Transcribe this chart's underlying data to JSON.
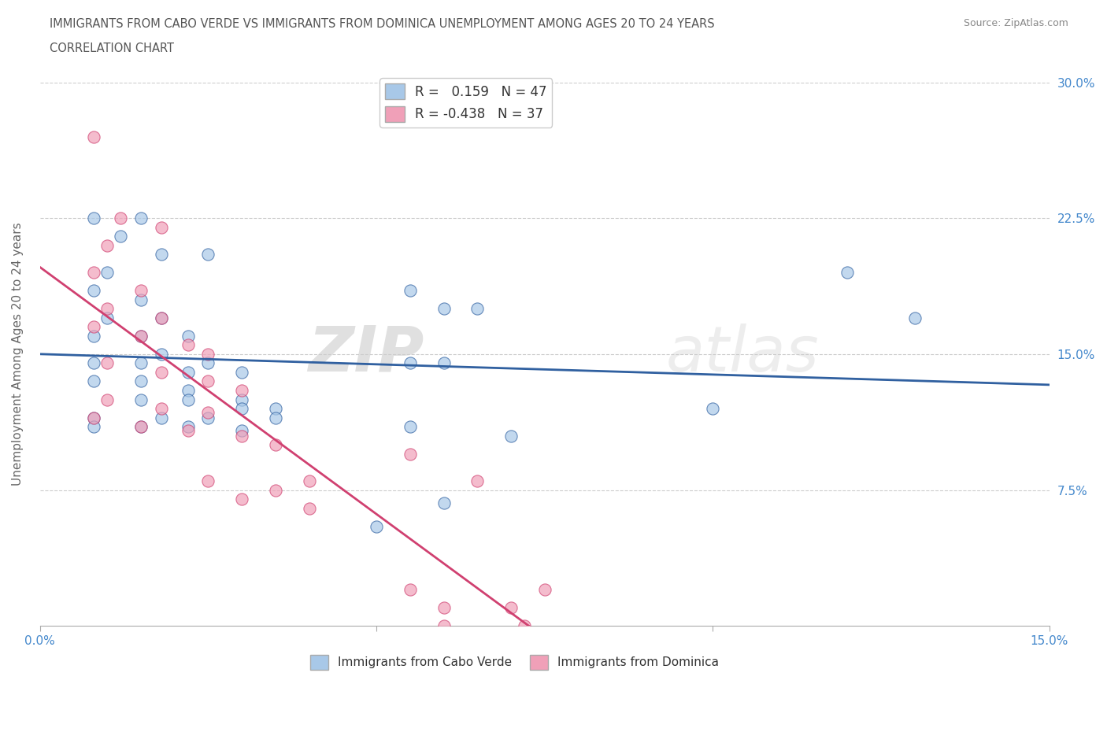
{
  "title_line1": "IMMIGRANTS FROM CABO VERDE VS IMMIGRANTS FROM DOMINICA UNEMPLOYMENT AMONG AGES 20 TO 24 YEARS",
  "title_line2": "CORRELATION CHART",
  "source_text": "Source: ZipAtlas.com",
  "ylabel": "Unemployment Among Ages 20 to 24 years",
  "xlim": [
    0.0,
    0.15
  ],
  "ylim": [
    0.0,
    0.3
  ],
  "ytick_labels_right": [
    "7.5%",
    "15.0%",
    "22.5%",
    "30.0%"
  ],
  "ytick_vals": [
    0.075,
    0.15,
    0.225,
    0.3
  ],
  "cabo_verde_color": "#A8C8E8",
  "dominica_color": "#F0A0B8",
  "cabo_verde_line_color": "#3060A0",
  "dominica_line_color": "#D04070",
  "cabo_verde_R": 0.159,
  "cabo_verde_N": 47,
  "dominica_R": -0.438,
  "dominica_N": 37,
  "cabo_verde_scatter": [
    [
      0.008,
      0.225
    ],
    [
      0.015,
      0.225
    ],
    [
      0.012,
      0.215
    ],
    [
      0.018,
      0.205
    ],
    [
      0.025,
      0.205
    ],
    [
      0.01,
      0.195
    ],
    [
      0.008,
      0.185
    ],
    [
      0.015,
      0.18
    ],
    [
      0.01,
      0.17
    ],
    [
      0.018,
      0.17
    ],
    [
      0.008,
      0.16
    ],
    [
      0.015,
      0.16
    ],
    [
      0.022,
      0.16
    ],
    [
      0.018,
      0.15
    ],
    [
      0.008,
      0.145
    ],
    [
      0.015,
      0.145
    ],
    [
      0.025,
      0.145
    ],
    [
      0.022,
      0.14
    ],
    [
      0.03,
      0.14
    ],
    [
      0.008,
      0.135
    ],
    [
      0.015,
      0.135
    ],
    [
      0.022,
      0.13
    ],
    [
      0.015,
      0.125
    ],
    [
      0.022,
      0.125
    ],
    [
      0.03,
      0.125
    ],
    [
      0.03,
      0.12
    ],
    [
      0.035,
      0.12
    ],
    [
      0.008,
      0.115
    ],
    [
      0.018,
      0.115
    ],
    [
      0.025,
      0.115
    ],
    [
      0.035,
      0.115
    ],
    [
      0.008,
      0.11
    ],
    [
      0.015,
      0.11
    ],
    [
      0.022,
      0.11
    ],
    [
      0.03,
      0.108
    ],
    [
      0.055,
      0.185
    ],
    [
      0.06,
      0.175
    ],
    [
      0.065,
      0.175
    ],
    [
      0.055,
      0.145
    ],
    [
      0.06,
      0.145
    ],
    [
      0.055,
      0.11
    ],
    [
      0.07,
      0.105
    ],
    [
      0.1,
      0.12
    ],
    [
      0.12,
      0.195
    ],
    [
      0.13,
      0.17
    ],
    [
      0.06,
      0.068
    ],
    [
      0.05,
      0.055
    ]
  ],
  "dominica_scatter": [
    [
      0.008,
      0.27
    ],
    [
      0.012,
      0.225
    ],
    [
      0.018,
      0.22
    ],
    [
      0.01,
      0.21
    ],
    [
      0.008,
      0.195
    ],
    [
      0.015,
      0.185
    ],
    [
      0.01,
      0.175
    ],
    [
      0.018,
      0.17
    ],
    [
      0.008,
      0.165
    ],
    [
      0.015,
      0.16
    ],
    [
      0.022,
      0.155
    ],
    [
      0.025,
      0.15
    ],
    [
      0.01,
      0.145
    ],
    [
      0.018,
      0.14
    ],
    [
      0.025,
      0.135
    ],
    [
      0.03,
      0.13
    ],
    [
      0.01,
      0.125
    ],
    [
      0.018,
      0.12
    ],
    [
      0.025,
      0.118
    ],
    [
      0.008,
      0.115
    ],
    [
      0.015,
      0.11
    ],
    [
      0.022,
      0.108
    ],
    [
      0.03,
      0.105
    ],
    [
      0.035,
      0.1
    ],
    [
      0.04,
      0.08
    ],
    [
      0.025,
      0.08
    ],
    [
      0.035,
      0.075
    ],
    [
      0.03,
      0.07
    ],
    [
      0.04,
      0.065
    ],
    [
      0.055,
      0.095
    ],
    [
      0.065,
      0.08
    ],
    [
      0.055,
      0.02
    ],
    [
      0.075,
      0.02
    ],
    [
      0.06,
      0.01
    ],
    [
      0.07,
      0.01
    ],
    [
      0.06,
      0.0
    ],
    [
      0.072,
      0.0
    ]
  ],
  "watermark_zip": "ZIP",
  "watermark_atlas": "atlas",
  "background_color": "#FFFFFF",
  "grid_color": "#CCCCCC",
  "title_color": "#555555"
}
